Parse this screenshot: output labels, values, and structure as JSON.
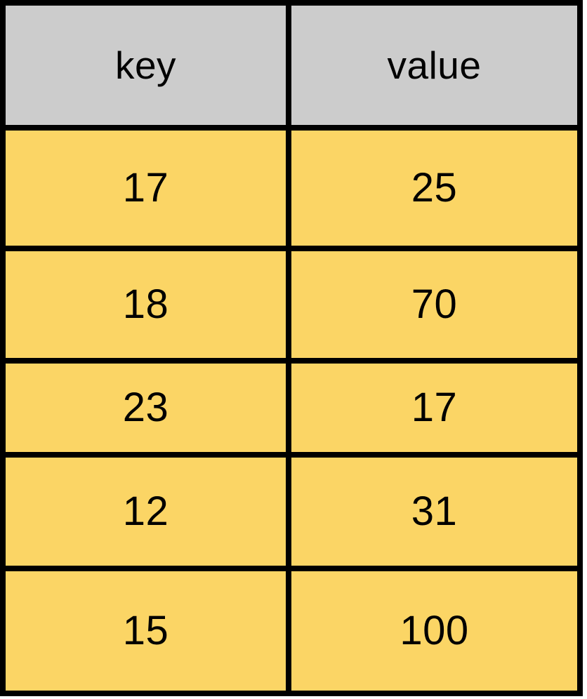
{
  "table": {
    "columns": [
      "key",
      "value"
    ],
    "rows": [
      [
        "17",
        "25"
      ],
      [
        "18",
        "70"
      ],
      [
        "23",
        "17"
      ],
      [
        "12",
        "31"
      ],
      [
        "15",
        "100"
      ]
    ]
  },
  "colors": {
    "header_bg": "#CCCCCC",
    "row_bg": "#FBD565",
    "border": "#000000",
    "text": "#000000"
  },
  "chart_data": {
    "type": "table",
    "columns": [
      "key",
      "value"
    ],
    "rows": [
      [
        17,
        25
      ],
      [
        18,
        70
      ],
      [
        23,
        17
      ],
      [
        12,
        31
      ],
      [
        15,
        100
      ]
    ],
    "title": "",
    "layout": "2-column bordered grid, gray header row, yellow data rows"
  }
}
